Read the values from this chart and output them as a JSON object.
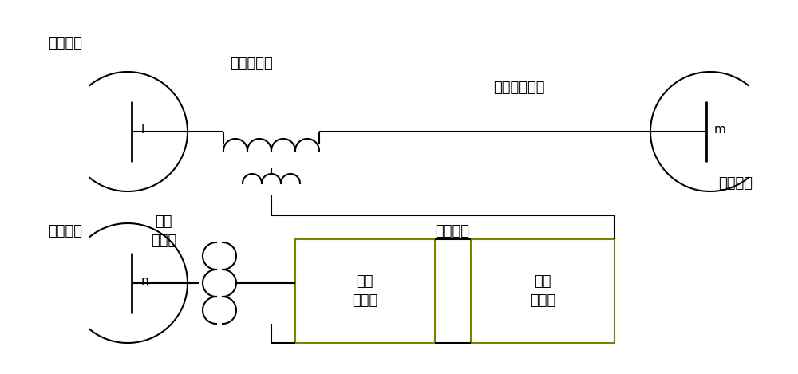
{
  "bg_color": "#ffffff",
  "line_color": "#000000",
  "box_border_shunt": "#808060",
  "box_border_series": "#808060",
  "figsize": [
    10.0,
    4.69
  ],
  "dpi": 100,
  "labels": {
    "ac_net_tl": "交流网络",
    "ac_net_bl": "交流网络",
    "ac_net_r": "交流网络",
    "series_tr": "串联变压器",
    "shunt_tr": "并联\n变压器",
    "ac_line": "交流输电线路",
    "dc_line": "直流线路",
    "shunt_conv": "并联\n换流器",
    "series_conv": "串联\n换流器",
    "node_l": "l",
    "node_m": "m",
    "node_n": "n"
  },
  "font_size": 13,
  "font_size_node": 11
}
